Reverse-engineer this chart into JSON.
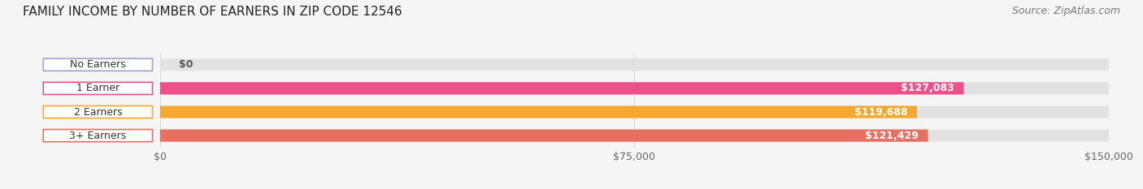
{
  "title": "FAMILY INCOME BY NUMBER OF EARNERS IN ZIP CODE 12546",
  "source": "Source: ZipAtlas.com",
  "categories": [
    "No Earners",
    "1 Earner",
    "2 Earners",
    "3+ Earners"
  ],
  "values": [
    0,
    127083,
    119688,
    121429
  ],
  "max_value": 150000,
  "bar_colors": [
    "#a0a0d0",
    "#f0508a",
    "#f5a830",
    "#e87060"
  ],
  "label_colors": [
    "#a0a0d0",
    "#f0508a",
    "#f5a830",
    "#e87060"
  ],
  "value_labels": [
    "$0",
    "$127,083",
    "$119,688",
    "$121,429"
  ],
  "x_ticks": [
    0,
    75000,
    150000
  ],
  "x_tick_labels": [
    "$0",
    "$75,000",
    "$150,000"
  ],
  "background_color": "#f5f5f5",
  "bar_bg_color": "#e2e2e2",
  "title_fontsize": 11,
  "source_fontsize": 9,
  "label_fontsize": 9,
  "value_fontsize": 9
}
